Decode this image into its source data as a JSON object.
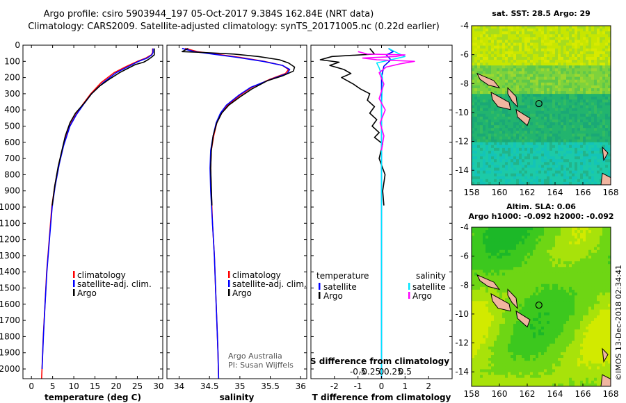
{
  "title": {
    "line1": "Argo profile: csiro 5903944_197 05-Oct-2017 9.384S 162.84E (NRT data)",
    "line2": "Climatology: CARS2009. Satellite-adjusted climatology: synTS_20171005.nc (0.22d earlier)"
  },
  "colors": {
    "climatology": "#ff0000",
    "satellite": "#0000ff",
    "argo": "#000000",
    "argo_sal_diff": "#ff00ff",
    "sat_sal_diff": "#00e5ff"
  },
  "depth_axis": {
    "ylim": [
      0,
      2060
    ],
    "ticks": [
      0,
      100,
      200,
      300,
      400,
      500,
      600,
      700,
      800,
      900,
      1000,
      1100,
      1200,
      1300,
      1400,
      1500,
      1600,
      1700,
      1800,
      1900,
      2000
    ],
    "labels": [
      "0",
      "100",
      "200",
      "300",
      "400",
      "500",
      "600",
      "700",
      "800",
      "900",
      "1000",
      "1100",
      "1200",
      "1300",
      "1400",
      "1500",
      "1600",
      "1700",
      "1800",
      "1900",
      "2000"
    ]
  },
  "chart_data": [
    {
      "type": "line",
      "id": "temperature",
      "xlabel": "temperature (deg C)",
      "xlim": [
        -2,
        31
      ],
      "xticks": [
        0,
        5,
        10,
        15,
        20,
        25,
        30
      ],
      "xtick_labels": [
        "0",
        "5",
        "10",
        "15",
        "20",
        "25",
        "30"
      ],
      "legend": [
        "climatology",
        "satellite-adj. clim.",
        "Argo"
      ],
      "series": [
        {
          "name": "climatology",
          "color_key": "climatology",
          "points": [
            [
              28.6,
              20
            ],
            [
              28.6,
              45
            ],
            [
              28.3,
              60
            ],
            [
              27,
              80
            ],
            [
              25,
              100
            ],
            [
              22.5,
              130
            ],
            [
              19.5,
              170
            ],
            [
              16.5,
              230
            ],
            [
              14,
              300
            ],
            [
              12,
              370
            ],
            [
              10.5,
              430
            ],
            [
              9,
              500
            ],
            [
              7.5,
              620
            ],
            [
              6.5,
              730
            ],
            [
              5.5,
              870
            ],
            [
              4.8,
              1000
            ],
            [
              4.2,
              1200
            ],
            [
              3.6,
              1400
            ],
            [
              3.2,
              1600
            ],
            [
              2.8,
              1800
            ],
            [
              2.5,
              2000
            ],
            [
              2.4,
              2060
            ]
          ]
        },
        {
          "name": "satellite-adj. clim.",
          "color_key": "satellite",
          "points": [
            [
              28.7,
              20
            ],
            [
              28.7,
              45
            ],
            [
              28.4,
              60
            ],
            [
              27.3,
              80
            ],
            [
              25.3,
              100
            ],
            [
              23,
              130
            ],
            [
              20,
              170
            ],
            [
              17,
              230
            ],
            [
              14.2,
              300
            ],
            [
              12.2,
              370
            ],
            [
              10.6,
              430
            ],
            [
              9.1,
              500
            ],
            [
              7.6,
              620
            ],
            [
              6.6,
              730
            ],
            [
              5.6,
              870
            ],
            [
              4.9,
              1000
            ],
            [
              4.25,
              1200
            ],
            [
              3.65,
              1400
            ],
            [
              3.22,
              1600
            ],
            [
              2.82,
              1800
            ],
            [
              2.52,
              2000
            ]
          ]
        },
        {
          "name": "Argo",
          "color_key": "argo",
          "points": [
            [
              29.0,
              20
            ],
            [
              29.0,
              60
            ],
            [
              28.3,
              75
            ],
            [
              27.5,
              90
            ],
            [
              26.5,
              105
            ],
            [
              24.5,
              120
            ],
            [
              23.0,
              140
            ],
            [
              20.8,
              170
            ],
            [
              18.4,
              210
            ],
            [
              16.2,
              250
            ],
            [
              14.2,
              300
            ],
            [
              12.4,
              360
            ],
            [
              10.4,
              420
            ],
            [
              9.1,
              480
            ],
            [
              8.0,
              560
            ],
            [
              7.2,
              650
            ],
            [
              6.3,
              750
            ],
            [
              5.5,
              870
            ],
            [
              4.9,
              990
            ]
          ]
        }
      ]
    },
    {
      "type": "line",
      "id": "salinity",
      "xlabel": "salinity",
      "xlim": [
        33.8,
        36.1
      ],
      "xticks": [
        34,
        34.5,
        35,
        35.5,
        36
      ],
      "xtick_labels": [
        "34",
        "34.5",
        "35",
        "35.5",
        "36"
      ],
      "legend": [
        "climatology",
        "satellite-adj. clim.",
        "Argo"
      ],
      "annotations": [
        "Argo Australia",
        "PI: Susan Wijffels"
      ],
      "series": [
        {
          "name": "climatology",
          "color_key": "climatology",
          "points": [
            [
              34.1,
              20
            ],
            [
              34.3,
              40
            ],
            [
              34.6,
              55
            ],
            [
              35.0,
              75
            ],
            [
              35.4,
              100
            ],
            [
              35.7,
              125
            ],
            [
              35.8,
              150
            ],
            [
              35.75,
              175
            ],
            [
              35.5,
              210
            ],
            [
              35.2,
              260
            ],
            [
              35.0,
              310
            ],
            [
              34.8,
              370
            ],
            [
              34.7,
              420
            ],
            [
              34.62,
              480
            ],
            [
              34.57,
              560
            ],
            [
              34.53,
              650
            ],
            [
              34.52,
              760
            ],
            [
              34.53,
              900
            ],
            [
              34.55,
              1100
            ],
            [
              34.58,
              1300
            ],
            [
              34.6,
              1500
            ],
            [
              34.62,
              1700
            ],
            [
              34.64,
              1900
            ],
            [
              34.65,
              2060
            ]
          ]
        },
        {
          "name": "satellite-adj. clim.",
          "color_key": "satellite",
          "points": [
            [
              34.05,
              20
            ],
            [
              34.25,
              40
            ],
            [
              34.55,
              55
            ],
            [
              34.95,
              75
            ],
            [
              35.38,
              100
            ],
            [
              35.7,
              125
            ],
            [
              35.82,
              150
            ],
            [
              35.78,
              175
            ],
            [
              35.52,
              210
            ],
            [
              35.18,
              260
            ],
            [
              34.98,
              310
            ],
            [
              34.78,
              370
            ],
            [
              34.68,
              420
            ],
            [
              34.61,
              480
            ],
            [
              34.56,
              560
            ],
            [
              34.52,
              650
            ],
            [
              34.51,
              760
            ],
            [
              34.52,
              900
            ],
            [
              34.55,
              1100
            ],
            [
              34.58,
              1300
            ],
            [
              34.6,
              1500
            ],
            [
              34.62,
              1700
            ],
            [
              34.64,
              1900
            ],
            [
              34.65,
              2060
            ]
          ]
        },
        {
          "name": "Argo",
          "color_key": "argo",
          "points": [
            [
              34.15,
              20
            ],
            [
              34.05,
              40
            ],
            [
              34.4,
              45
            ],
            [
              34.9,
              55
            ],
            [
              35.3,
              70
            ],
            [
              35.65,
              90
            ],
            [
              35.8,
              110
            ],
            [
              35.9,
              135
            ],
            [
              35.88,
              160
            ],
            [
              35.7,
              190
            ],
            [
              35.45,
              220
            ],
            [
              35.2,
              270
            ],
            [
              35.0,
              320
            ],
            [
              34.82,
              370
            ],
            [
              34.7,
              420
            ],
            [
              34.62,
              480
            ],
            [
              34.56,
              560
            ],
            [
              34.53,
              650
            ],
            [
              34.52,
              760
            ],
            [
              34.53,
              880
            ],
            [
              34.54,
              990
            ]
          ]
        }
      ]
    },
    {
      "type": "line",
      "id": "difference",
      "xlabel": "T difference from climatology",
      "x2label": "S difference from climatology",
      "xlim": [
        -3,
        3
      ],
      "xticks": [
        -2,
        -1,
        0,
        1,
        2
      ],
      "xtick_labels": [
        "-2",
        "-1",
        "0",
        "1",
        "2"
      ],
      "x2ticks": [
        -0.5,
        -0.25,
        0,
        0.25,
        0.5
      ],
      "x2tick_labels": [
        "-0.5",
        "-0.25",
        "0",
        "0.25",
        "0.5"
      ],
      "legend_temperature_title": "temperature",
      "legend_salinity_title": "salinity",
      "legend_temperature": [
        "satellite",
        "Argo"
      ],
      "legend_salinity": [
        "satellite",
        "Argo"
      ],
      "series": [
        {
          "name": "temperature satellite",
          "color_key": "satellite",
          "points": [
            [
              0.3,
              20
            ],
            [
              0.5,
              40
            ],
            [
              0.2,
              60
            ],
            [
              0.4,
              90
            ],
            [
              0.1,
              130
            ],
            [
              0,
              200
            ],
            [
              0,
              400
            ],
            [
              0,
              800
            ],
            [
              0,
              2060
            ]
          ]
        },
        {
          "name": "temperature Argo",
          "color_key": "argo",
          "points": [
            [
              -0.5,
              20
            ],
            [
              -0.3,
              55
            ],
            [
              -2.1,
              70
            ],
            [
              -2.6,
              90
            ],
            [
              -1.8,
              105
            ],
            [
              -2.2,
              125
            ],
            [
              -1.6,
              150
            ],
            [
              -1.3,
              175
            ],
            [
              -1.7,
              200
            ],
            [
              -1.2,
              240
            ],
            [
              -0.9,
              270
            ],
            [
              -0.5,
              300
            ],
            [
              -0.6,
              340
            ],
            [
              -0.3,
              380
            ],
            [
              -0.5,
              420
            ],
            [
              -0.2,
              460
            ],
            [
              -0.4,
              500
            ],
            [
              -0.1,
              540
            ],
            [
              -0.3,
              570
            ],
            [
              0.05,
              610
            ],
            [
              -0.1,
              700
            ],
            [
              0.15,
              800
            ],
            [
              0.05,
              900
            ],
            [
              0.1,
              990
            ]
          ]
        },
        {
          "name": "salinity satellite",
          "color_key": "sat_sal_diff",
          "points": [
            [
              0.15,
              20
            ],
            [
              0.35,
              50
            ],
            [
              0.5,
              70
            ],
            [
              0.2,
              90
            ],
            [
              -0.1,
              110
            ],
            [
              -0.05,
              140
            ],
            [
              0.02,
              200
            ],
            [
              0,
              400
            ],
            [
              0,
              800
            ],
            [
              0,
              2060
            ]
          ]
        },
        {
          "name": "salinity Argo",
          "color_key": "argo_sal_diff",
          "points": [
            [
              -0.5,
              40
            ],
            [
              -0.3,
              55
            ],
            [
              0.5,
              60
            ],
            [
              0.3,
              70
            ],
            [
              -0.4,
              80
            ],
            [
              -0.1,
              90
            ],
            [
              0.7,
              100
            ],
            [
              0.4,
              115
            ],
            [
              0.1,
              135
            ],
            [
              -0.05,
              170
            ],
            [
              0.05,
              240
            ],
            [
              -0.05,
              330
            ],
            [
              0.08,
              400
            ],
            [
              -0.03,
              480
            ],
            [
              0.05,
              560
            ],
            [
              0,
              650
            ]
          ]
        }
      ]
    },
    {
      "type": "heatmap",
      "id": "sst_map",
      "title": "sat. SST: 28.5 Argo: 29",
      "xlim": [
        158,
        168
      ],
      "ylim": [
        -15,
        -4
      ],
      "xticks": [
        158,
        160,
        162,
        164,
        166,
        168
      ],
      "yticks": [
        -4,
        -6,
        -8,
        -10,
        -12,
        -14
      ],
      "argo_position": {
        "lon": 162.84,
        "lat": -9.384
      }
    },
    {
      "type": "heatmap",
      "id": "sla_map",
      "title": "Altim. SLA: 0.06",
      "subtitle": "Argo h1000: -0.092 h2000: -0.092",
      "xlim": [
        158,
        168
      ],
      "ylim": [
        -15,
        -4
      ],
      "xticks": [
        158,
        160,
        162,
        164,
        166,
        168
      ],
      "yticks": [
        -4,
        -6,
        -8,
        -10,
        -12,
        -14
      ],
      "argo_position": {
        "lon": 162.84,
        "lat": -9.384
      }
    }
  ],
  "footer": {
    "credit": "©IMOS 13-Dec-2018 02:34:41"
  }
}
